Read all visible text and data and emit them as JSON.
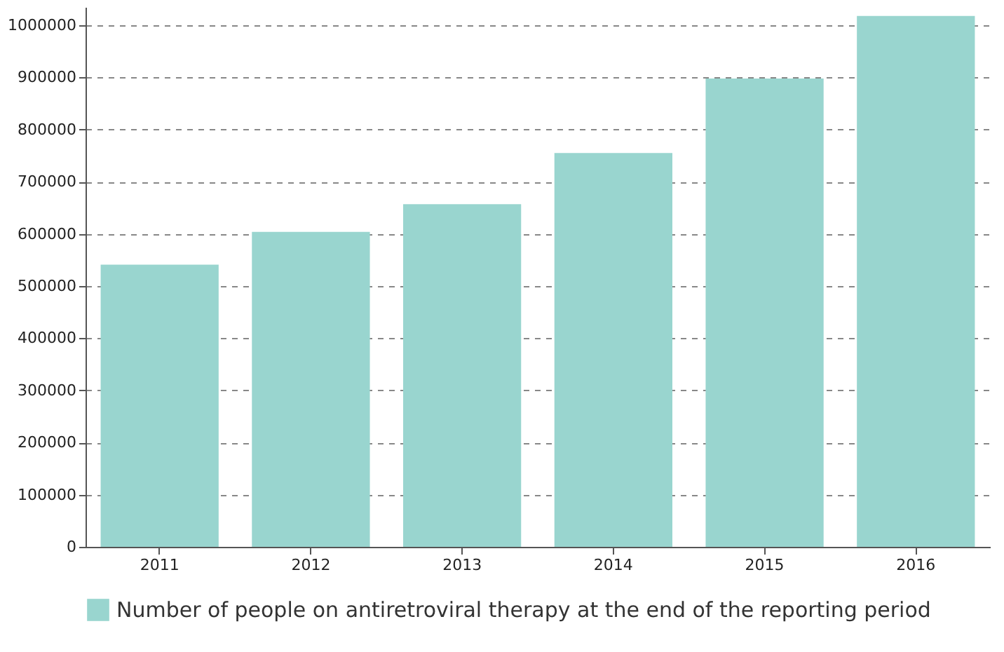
{
  "chart_data": {
    "type": "bar",
    "categories": [
      "2011",
      "2012",
      "2013",
      "2014",
      "2015",
      "2016"
    ],
    "series": [
      {
        "name": "Number of people on antiretroviral therapy at the end of the reporting period",
        "color": "#99d5cf",
        "values": [
          541000,
          604000,
          657000,
          755000,
          898000,
          1018000
        ]
      }
    ],
    "ylim": [
      0,
      1035000
    ],
    "yticks": [
      0,
      100000,
      200000,
      300000,
      400000,
      500000,
      600000,
      700000,
      800000,
      900000,
      1000000
    ],
    "grid": "y",
    "legend": "bottom"
  }
}
